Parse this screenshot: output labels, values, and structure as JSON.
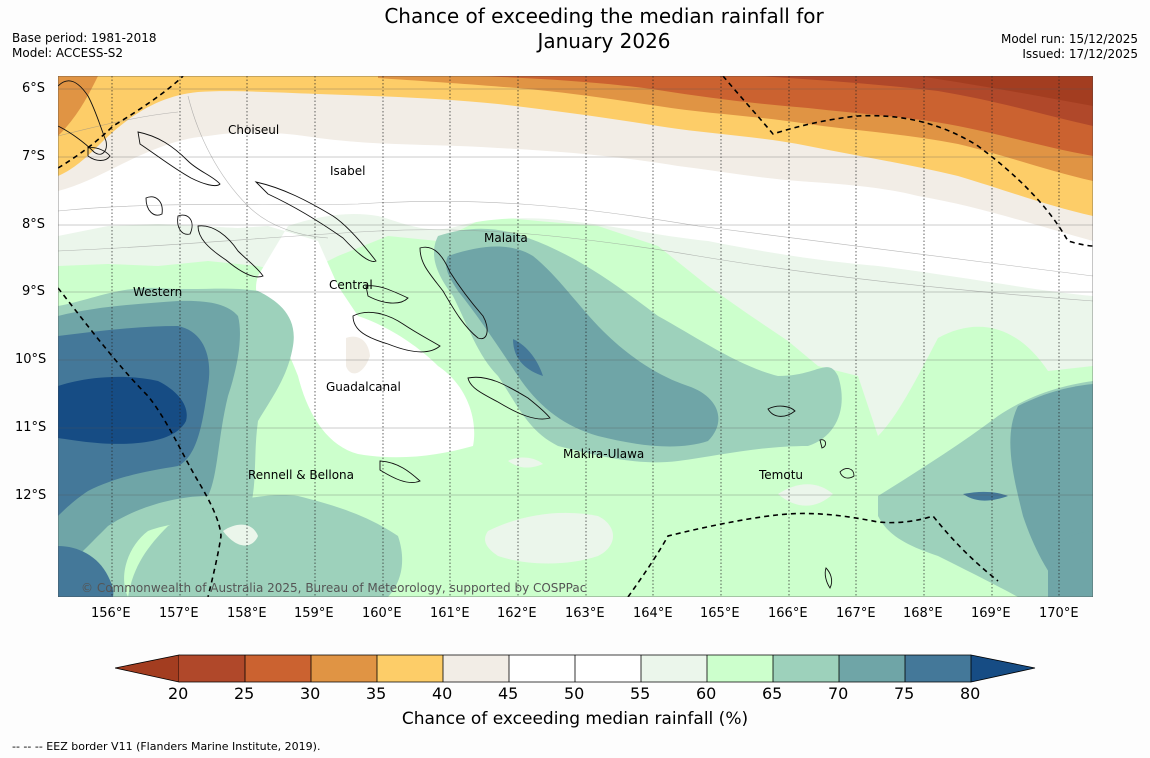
{
  "title": {
    "line1": "Chance of exceeding the median rainfall for",
    "line2": "January 2026"
  },
  "meta": {
    "base_period": "Base period: 1981-2018",
    "model": "Model: ACCESS-S2",
    "model_run": "Model run: 15/12/2025",
    "issued": "Issued: 17/12/2025"
  },
  "axes": {
    "latitudes": [
      "6°S",
      "7°S",
      "8°S",
      "9°S",
      "10°S",
      "11°S",
      "12°S"
    ],
    "longitudes": [
      "156°E",
      "157°E",
      "158°E",
      "159°E",
      "160°E",
      "161°E",
      "162°E",
      "163°E",
      "164°E",
      "165°E",
      "166°E",
      "167°E",
      "168°E",
      "169°E",
      "170°E"
    ]
  },
  "places": {
    "choiseul": "Choiseul",
    "isabel": "Isabel",
    "malaita": "Malaita",
    "western": "Western",
    "central": "Central",
    "guadalcanal": "Guadalcanal",
    "makira": "Makira-Ulawa",
    "rennell": "Rennell & Bellona",
    "temotu": "Temotu"
  },
  "copyright": "© Commonwealth of Australia 2025, Bureau of Meteorology, supported by COSPPac",
  "colorbar": {
    "ticks": [
      "20",
      "25",
      "30",
      "35",
      "40",
      "45",
      "50",
      "55",
      "60",
      "65",
      "70",
      "75",
      "80"
    ],
    "label": "Chance of exceeding median rainfall (%)",
    "colors": {
      "lt20": "#a33d20",
      "20_25": "#b0482a",
      "25_30": "#cb6230",
      "30_35": "#e09444",
      "35_40": "#fdcd68",
      "40_45": "#f2ede6",
      "45_50": "#ffffff",
      "50_55": "#ffffff",
      "55_60": "#ebf6eb",
      "60_65": "#ccffcc",
      "65_70": "#9dd1bb",
      "70_75": "#6fa5a7",
      "75_80": "#447899",
      "gt80": "#164c84"
    }
  },
  "footnote": "--  --  -- EEZ border V11 (Flanders Marine Institute, 2019)."
}
